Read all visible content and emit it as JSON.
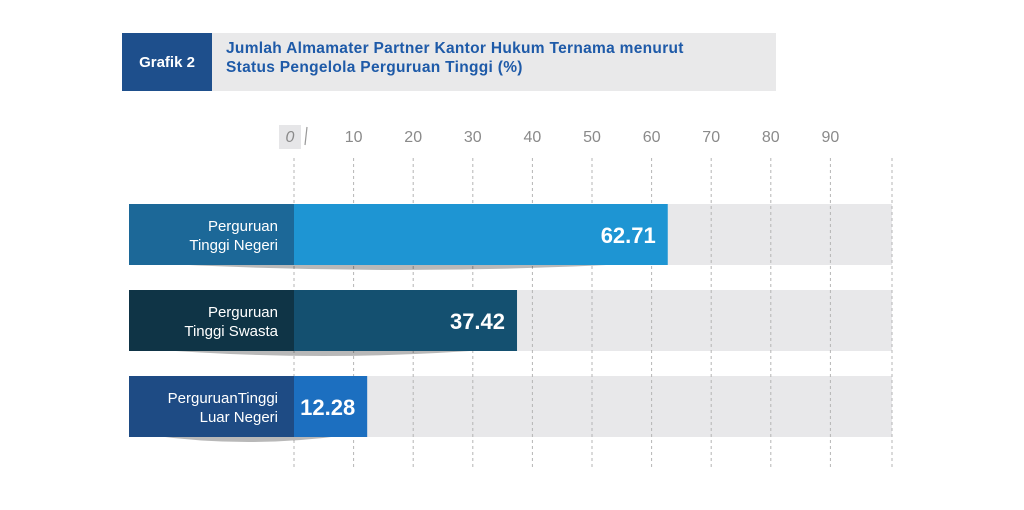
{
  "header": {
    "badge": "Grafik 2",
    "title_line1": "Jumlah Almamater Partner Kantor Hukum Ternama menurut",
    "title_line2": "Status Pengelola Perguruan Tinggi (%)"
  },
  "chart_data": {
    "type": "bar",
    "orientation": "horizontal",
    "title": "Jumlah Almamater Partner Kantor Hukum Ternama menurut Status Pengelola Perguruan Tinggi (%)",
    "xlim": [
      0,
      100
    ],
    "ticks": [
      {
        "value": 0,
        "label": "0"
      },
      {
        "value": 10,
        "label": "10"
      },
      {
        "value": 20,
        "label": "20"
      },
      {
        "value": 30,
        "label": "30"
      },
      {
        "value": 40,
        "label": "40"
      },
      {
        "value": 50,
        "label": "50"
      },
      {
        "value": 60,
        "label": "60"
      },
      {
        "value": 70,
        "label": "70"
      },
      {
        "value": 80,
        "label": "80"
      },
      {
        "value": 90,
        "label": "90"
      }
    ],
    "grid": true,
    "bars": [
      {
        "line1": "Perguruan",
        "line2": "Tinggi Negeri",
        "value": 62.71,
        "value_label": "62.71",
        "label_color": "#1c6898",
        "bar_color": "#1e95d3"
      },
      {
        "line1": "Perguruan",
        "line2": "Tinggi Swasta",
        "value": 37.42,
        "value_label": "37.42",
        "label_color": "#0f3446",
        "bar_color": "#145070"
      },
      {
        "line1": "PerguruanTinggi",
        "line2": "Luar Negeri",
        "value": 12.28,
        "value_label": "12.28",
        "label_color": "#1e4b84",
        "bar_color": "#1c6fc0"
      }
    ],
    "track_color": "#e8e8ea"
  }
}
